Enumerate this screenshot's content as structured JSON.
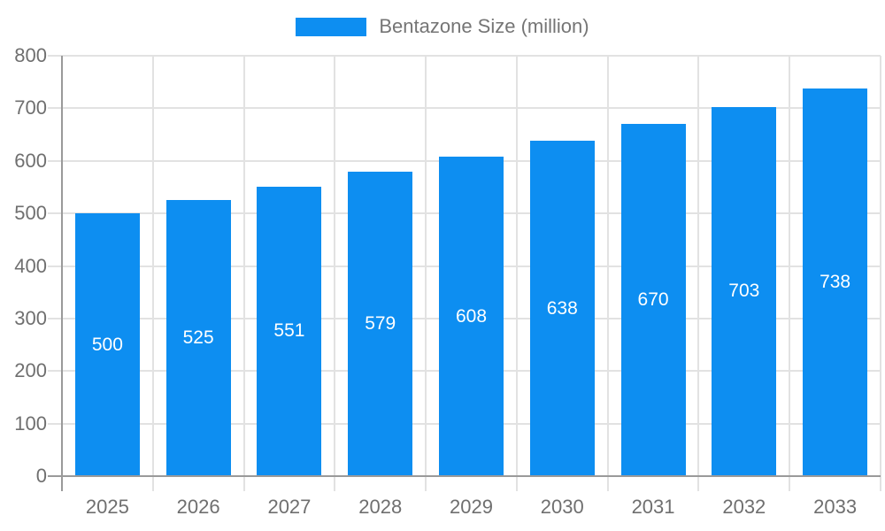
{
  "legend": {
    "label": "Bentazone Size (million)"
  },
  "chart_data": {
    "type": "bar",
    "title": "",
    "legend": "Bentazone Size (million)",
    "legend_position": "top-center",
    "categories": [
      "2025",
      "2026",
      "2027",
      "2028",
      "2029",
      "2030",
      "2031",
      "2032",
      "2033"
    ],
    "values": [
      500,
      525,
      551,
      579,
      608,
      638,
      670,
      703,
      738
    ],
    "xlabel": "",
    "ylabel": "",
    "ylim": [
      0,
      800
    ],
    "ytick_step": 100,
    "yticks": [
      0,
      100,
      200,
      300,
      400,
      500,
      600,
      700,
      800
    ],
    "grid": true,
    "value_labels": "inside-center",
    "colors": {
      "bar": "#0d8ef1",
      "grid": "#e2e2e2",
      "axis": "#9a9a9a",
      "tick_text": "#6f6f6f",
      "legend_text": "#757575",
      "value_label_text": "#ffffff",
      "background": "#ffffff"
    }
  }
}
